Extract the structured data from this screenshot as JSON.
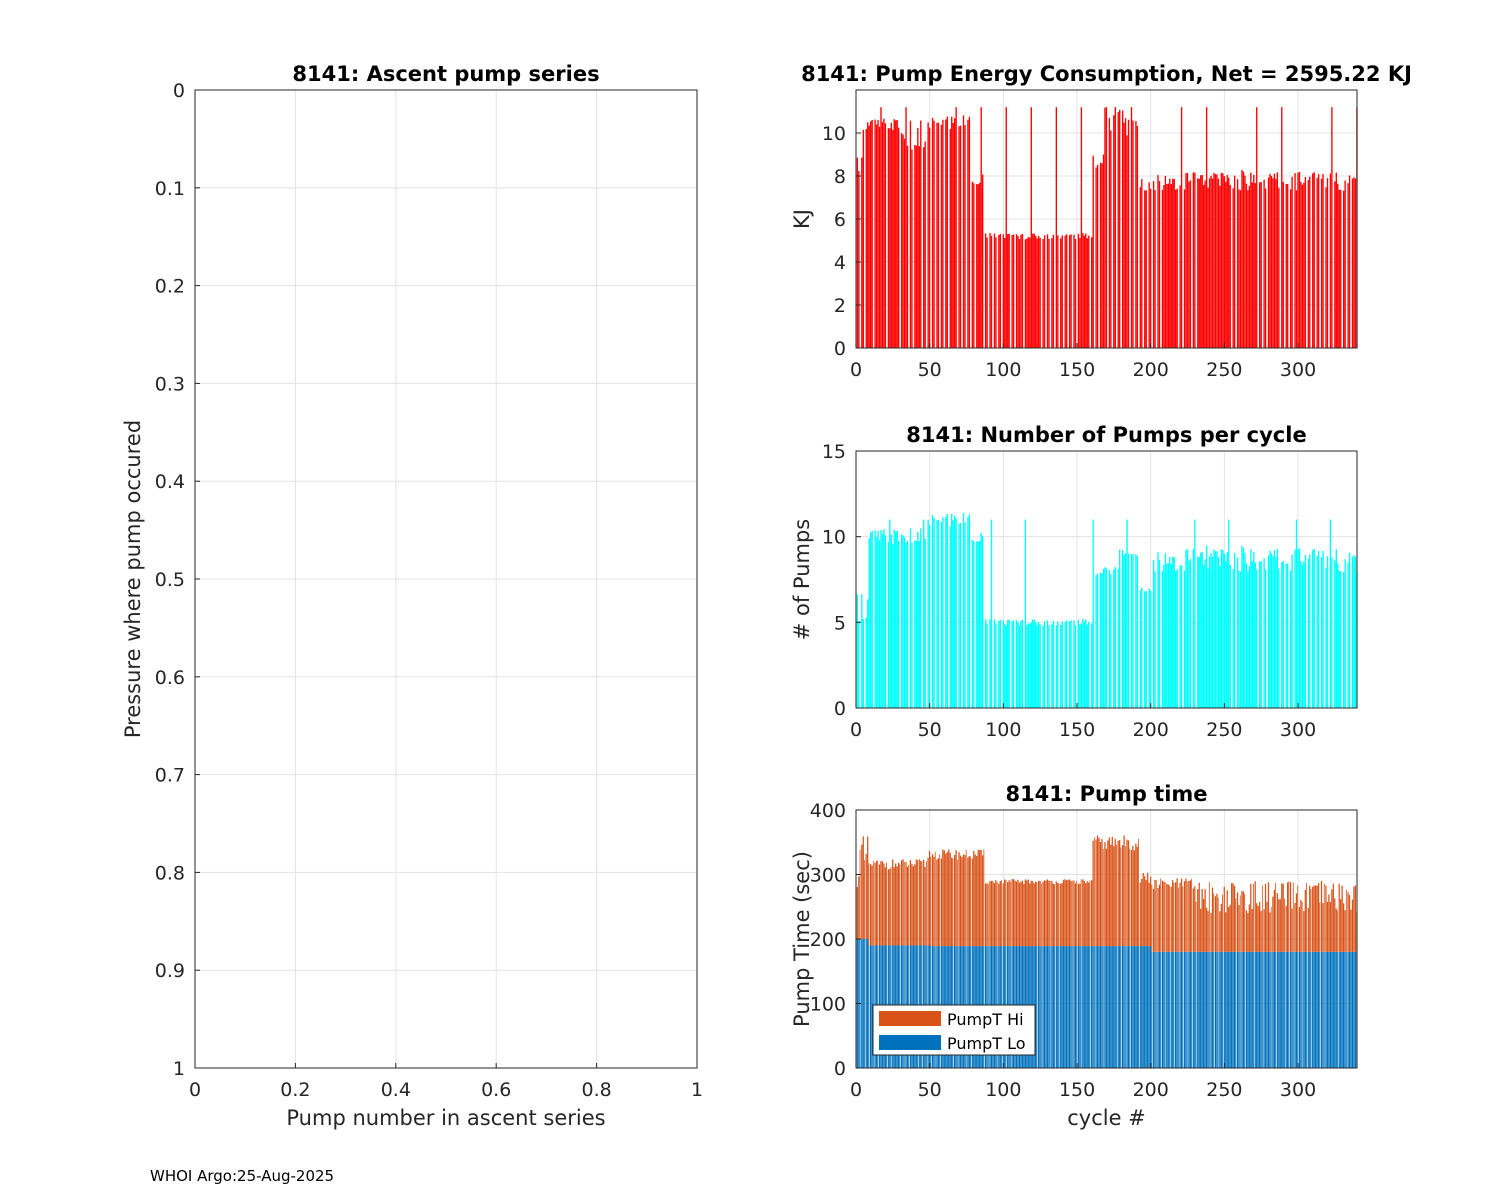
{
  "figure_id": "8141",
  "footer": {
    "text": "WHOI Argo:25-Aug-2025"
  },
  "chart_data": [
    {
      "id": "ascent",
      "type": "scatter",
      "title": "8141: Ascent pump series",
      "xlabel": "Pump number in ascent series",
      "ylabel": "Pressure where pump occured",
      "xlim": [
        0,
        1
      ],
      "ylim": [
        0,
        1
      ],
      "y_reversed": true,
      "xticks": [
        0,
        0.2,
        0.4,
        0.6,
        0.8,
        1
      ],
      "xtick_labels": [
        "0",
        "0.2",
        "0.4",
        "0.6",
        "0.8",
        "1"
      ],
      "yticks": [
        0,
        0.1,
        0.2,
        0.3,
        0.4,
        0.5,
        0.6,
        0.7,
        0.8,
        0.9,
        1
      ],
      "ytick_labels": [
        "0",
        "0.1",
        "0.2",
        "0.3",
        "0.4",
        "0.5",
        "0.6",
        "0.7",
        "0.8",
        "0.9",
        "1"
      ],
      "grid": true,
      "points": []
    },
    {
      "id": "energy",
      "type": "bar",
      "title": "8141: Pump Energy Consumption,  Net = 2595.22 KJ",
      "xlabel": "",
      "ylabel": "KJ",
      "xlim": [
        0,
        340
      ],
      "ylim": [
        0,
        12
      ],
      "xticks": [
        0,
        50,
        100,
        150,
        200,
        250,
        300
      ],
      "xtick_labels": [
        "0",
        "50",
        "100",
        "150",
        "200",
        "250",
        "300"
      ],
      "yticks": [
        0,
        2,
        4,
        6,
        8,
        10
      ],
      "ytick_labels": [
        "0",
        "2",
        "4",
        "6",
        "8",
        "10"
      ],
      "grid": true,
      "color": "#ff0000",
      "segments": [
        {
          "range": [
            1,
            4
          ],
          "level": 8.6,
          "jitter": 0.4
        },
        {
          "range": [
            5,
            30
          ],
          "level": 10.4,
          "jitter": 0.3
        },
        {
          "range": [
            31,
            48
          ],
          "level": 9.8,
          "jitter": 0.8
        },
        {
          "range": [
            49,
            78
          ],
          "level": 10.5,
          "jitter": 0.4
        },
        {
          "range": [
            79,
            87
          ],
          "level": 8.0,
          "jitter": 0.4
        },
        {
          "range": [
            88,
            160
          ],
          "level": 5.2,
          "jitter": 0.15
        },
        {
          "range": [
            161,
            168
          ],
          "level": 8.8,
          "jitter": 0.5
        },
        {
          "range": [
            169,
            192
          ],
          "level": 10.6,
          "jitter": 0.8
        },
        {
          "range": [
            193,
            340
          ],
          "level": 7.8,
          "jitter": 0.5
        }
      ],
      "gap_every": 3,
      "spike_every": 17,
      "spike_level": 11.2
    },
    {
      "id": "npumps",
      "type": "bar",
      "title": "8141: Number of Pumps per cycle",
      "xlabel": "",
      "ylabel": "# of Pumps",
      "xlim": [
        0,
        340
      ],
      "ylim": [
        0,
        15
      ],
      "xticks": [
        0,
        50,
        100,
        150,
        200,
        250,
        300
      ],
      "xtick_labels": [
        "0",
        "50",
        "100",
        "150",
        "200",
        "250",
        "300"
      ],
      "yticks": [
        0,
        5,
        10,
        15
      ],
      "ytick_labels": [
        "0",
        "5",
        "10",
        "15"
      ],
      "grid": true,
      "color": "#00ffff",
      "segments": [
        {
          "range": [
            1,
            8
          ],
          "level": 6,
          "jitter": 1
        },
        {
          "range": [
            9,
            30
          ],
          "level": 10,
          "jitter": 0.5
        },
        {
          "range": [
            31,
            48
          ],
          "level": 10,
          "jitter": 0.5
        },
        {
          "range": [
            49,
            78
          ],
          "level": 11,
          "jitter": 0.5
        },
        {
          "range": [
            79,
            87
          ],
          "level": 10,
          "jitter": 0.3
        },
        {
          "range": [
            88,
            160
          ],
          "level": 5,
          "jitter": 0.2
        },
        {
          "range": [
            161,
            178
          ],
          "level": 8,
          "jitter": 0.3
        },
        {
          "range": [
            179,
            192
          ],
          "level": 9,
          "jitter": 0.4
        },
        {
          "range": [
            193,
            200
          ],
          "level": 7,
          "jitter": 0.2
        },
        {
          "range": [
            201,
            340
          ],
          "level": 8.7,
          "jitter": 0.8
        }
      ],
      "gap_every": 3,
      "spike_every": 23,
      "spike_level": 11
    },
    {
      "id": "pumptime",
      "type": "bar",
      "stacked": true,
      "title": "8141: Pump time",
      "xlabel": "cycle #",
      "ylabel": "Pump Time (sec)",
      "xlim": [
        0,
        340
      ],
      "ylim": [
        0,
        400
      ],
      "xticks": [
        0,
        50,
        100,
        150,
        200,
        250,
        300
      ],
      "xtick_labels": [
        "0",
        "50",
        "100",
        "150",
        "200",
        "250",
        "300"
      ],
      "yticks": [
        0,
        100,
        200,
        300,
        400
      ],
      "ytick_labels": [
        "0",
        "100",
        "200",
        "300",
        "400"
      ],
      "grid": true,
      "series": [
        {
          "name": "PumpT Lo",
          "color": "#0072bd",
          "segments": [
            {
              "range": [
                1,
                8
              ],
              "level": 200
            },
            {
              "range": [
                9,
                50
              ],
              "level": 190
            },
            {
              "range": [
                51,
                200
              ],
              "level": 189
            },
            {
              "range": [
                201,
                340
              ],
              "level": 180
            }
          ]
        },
        {
          "name": "PumpT Hi",
          "color": "#d95319",
          "segments": [
            {
              "range": [
                1,
                8
              ],
              "level": 120,
              "jitter": 40
            },
            {
              "range": [
                9,
                48
              ],
              "level": 126,
              "jitter": 8
            },
            {
              "range": [
                49,
                87
              ],
              "level": 142,
              "jitter": 8
            },
            {
              "range": [
                88,
                160
              ],
              "level": 100,
              "jitter": 4
            },
            {
              "range": [
                161,
                192
              ],
              "level": 160,
              "jitter": 12
            },
            {
              "range": [
                193,
                230
              ],
              "level": 105,
              "jitter": 10
            },
            {
              "range": [
                231,
                340
              ],
              "level": 85,
              "jitter": 25
            }
          ]
        }
      ],
      "gap_every": 3,
      "legend": {
        "position": "bottom-left",
        "entries": [
          "PumpT Hi",
          "PumpT Lo"
        ]
      }
    }
  ]
}
